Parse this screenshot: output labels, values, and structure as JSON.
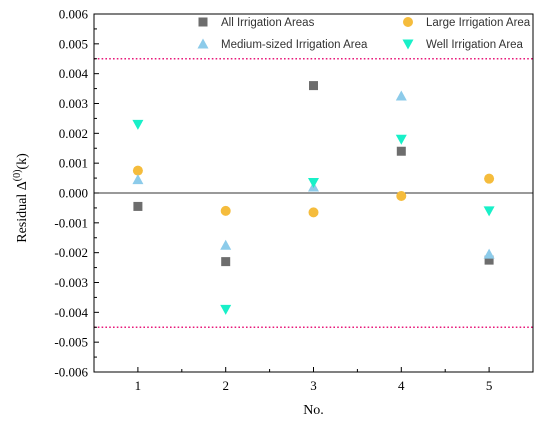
{
  "chart_data": {
    "type": "scatter",
    "x": [
      1,
      2,
      3,
      4,
      5
    ],
    "xlabel": "No.",
    "ylabel": "Residual  Δ",
    "ylabel_superscript": "(0)",
    "ylabel_suffix": "(k)",
    "xlim": [
      0.5,
      5.5
    ],
    "ylim": [
      -0.006,
      0.006
    ],
    "x_ticks": [
      1,
      2,
      3,
      4,
      5
    ],
    "y_ticks": [
      -0.006,
      -0.005,
      -0.004,
      -0.003,
      -0.002,
      -0.001,
      0.0,
      0.001,
      0.002,
      0.003,
      0.004,
      0.005,
      0.006
    ],
    "y_tick_labels": [
      "-0.006",
      "-0.005",
      "-0.004",
      "-0.003",
      "-0.002",
      "-0.001",
      "0.000",
      "0.001",
      "0.002",
      "0.003",
      "0.004",
      "0.005",
      "0.006"
    ],
    "grid": false,
    "legend_position": "top",
    "reference_lines": [
      {
        "y": 0.0,
        "style": "solid",
        "color": "#333333"
      },
      {
        "y": 0.0045,
        "style": "dotted",
        "color": "#e8197a"
      },
      {
        "y": -0.0045,
        "style": "dotted",
        "color": "#e8197a"
      }
    ],
    "series": [
      {
        "name": "All Irrigation Areas",
        "marker": "square",
        "color": "#6d6d6d",
        "values": [
          -0.00045,
          -0.0023,
          0.0036,
          0.0014,
          -0.00225
        ]
      },
      {
        "name": "Large Irrigation Area",
        "marker": "circle",
        "color": "#f5bc3c",
        "values": [
          0.00075,
          -0.0006,
          -0.00065,
          -0.0001,
          0.00048
        ]
      },
      {
        "name": "Medium-sized Irrigation Area",
        "marker": "triangle-up",
        "color": "#8ccbea",
        "values": [
          0.00045,
          -0.00175,
          0.0002,
          0.00325,
          -0.00205
        ]
      },
      {
        "name": "Well Irrigation Area",
        "marker": "triangle-down",
        "color": "#18f0c8",
        "values": [
          0.0023,
          -0.0039,
          0.00035,
          0.0018,
          -0.0006
        ]
      }
    ]
  }
}
